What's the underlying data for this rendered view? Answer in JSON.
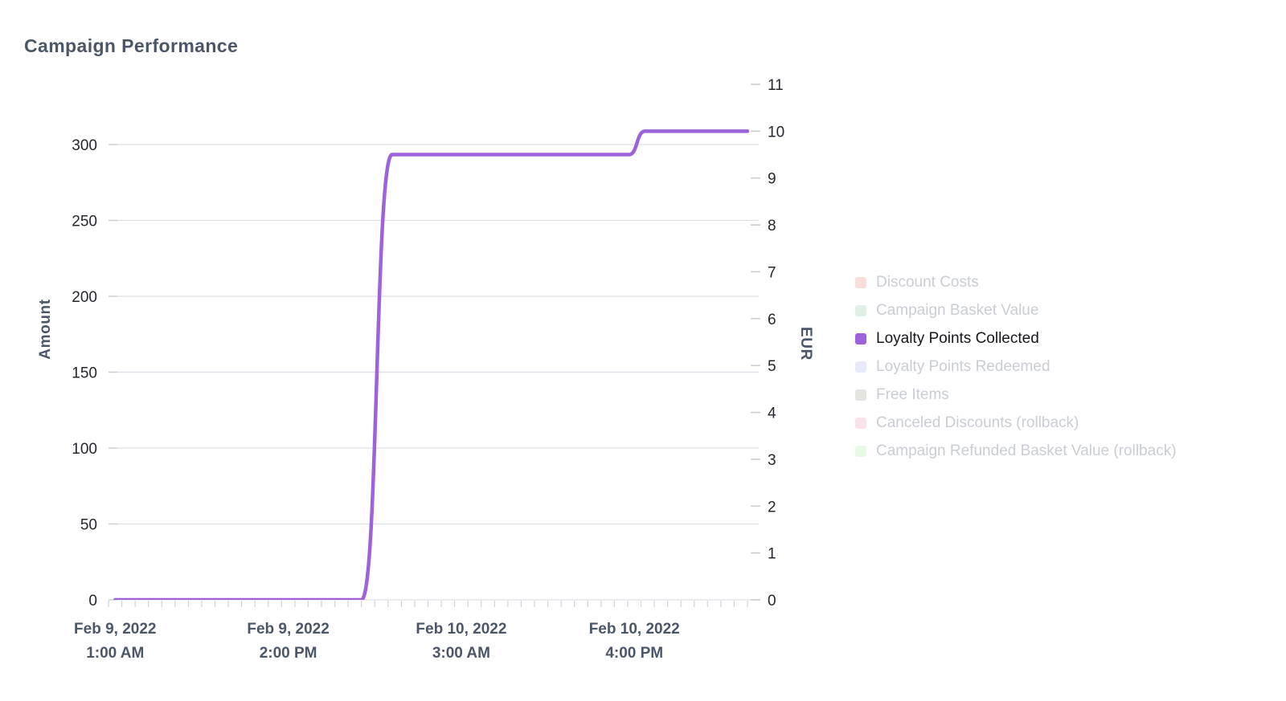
{
  "chart_data": {
    "type": "line",
    "title": "Campaign Performance",
    "x_axis": {
      "unit": "hours since Feb 9, 2022 12:00 AM",
      "range_hours": [
        0.5,
        48.5
      ],
      "minor_tick_interval_hours": 1,
      "tick_labels": [
        {
          "hour": 1,
          "date": "Feb 9, 2022",
          "time": "1:00 AM"
        },
        {
          "hour": 14,
          "date": "Feb 9, 2022",
          "time": "2:00 PM"
        },
        {
          "hour": 27,
          "date": "Feb 10, 2022",
          "time": "3:00 AM"
        },
        {
          "hour": 40,
          "date": "Feb 10, 2022",
          "time": "4:00 PM"
        }
      ]
    },
    "y_left": {
      "label": "Amount",
      "min": 0,
      "max": 300,
      "ticks": [
        0,
        50,
        100,
        150,
        200,
        250,
        300
      ],
      "gridlines": true
    },
    "y_right": {
      "label": "EUR",
      "min": 0,
      "max": 11,
      "ticks": [
        0,
        1,
        2,
        3,
        4,
        5,
        6,
        7,
        8,
        9,
        10,
        11
      ],
      "gridlines": false
    },
    "legend_position": "right",
    "points_format": "[hours since Feb 9 2022 12:00 AM, EUR value]",
    "series": [
      {
        "name": "Discount Costs",
        "color": "#fcded8",
        "active": false
      },
      {
        "name": "Campaign Basket Value",
        "color": "#dff1e5",
        "active": false
      },
      {
        "name": "Loyalty Points Collected",
        "color": "#9d62dc",
        "active": true,
        "axis": "right",
        "points": [
          [
            1,
            0
          ],
          [
            19.5,
            0
          ],
          [
            21.8,
            9.5
          ],
          [
            39.6,
            9.5
          ],
          [
            40.8,
            10
          ],
          [
            48.5,
            10
          ]
        ]
      },
      {
        "name": "Loyalty Points Redeemed",
        "color": "#e8eaf9",
        "active": false
      },
      {
        "name": "Free Items",
        "color": "#e6e4e1",
        "active": false
      },
      {
        "name": "Canceled Discounts (rollback)",
        "color": "#fce2eb",
        "active": false
      },
      {
        "name": "Campaign Refunded Basket Value (rollback)",
        "color": "#e7fae3",
        "active": false
      }
    ]
  },
  "colors": {
    "background": "#ffffff",
    "grid": "#dcdfe5",
    "axis_stub": "#c9ccd2",
    "minor_tick": "#d2d6dc",
    "right_dash": "#c6cad1",
    "tick_text": "#24272e",
    "axis_title_text": "#4b5768",
    "legend_inactive_text": "#c9cdd4",
    "legend_active_text": "#15171c"
  }
}
